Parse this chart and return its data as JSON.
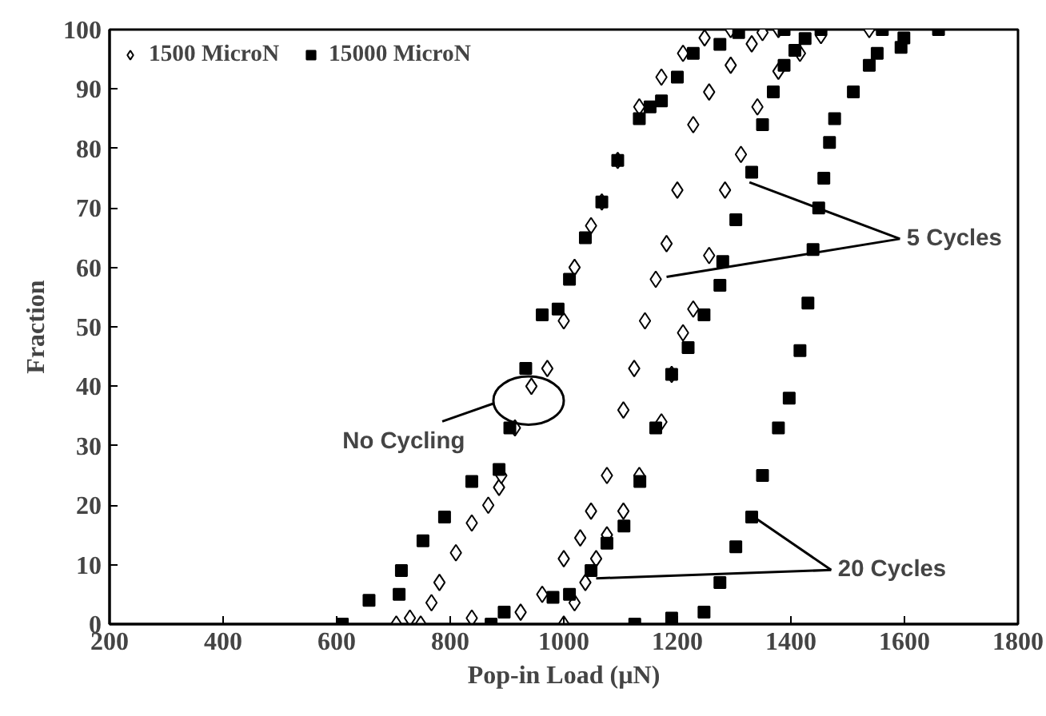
{
  "chart_data": {
    "type": "scatter",
    "xlabel": "Pop-in Load (µN)",
    "ylabel": "Fraction",
    "xlim": [
      200,
      1800
    ],
    "xticks": [
      200,
      400,
      600,
      800,
      1000,
      1200,
      1400,
      1600,
      1800
    ],
    "ylim": [
      0,
      100
    ],
    "yticks": [
      0,
      10,
      20,
      30,
      40,
      50,
      60,
      70,
      80,
      90,
      100
    ],
    "grid": false,
    "legend": "top left",
    "series": [
      {
        "name": "1500 MicroN",
        "color": "#ffffff",
        "marker": "diamond",
        "x": [
          705,
          729,
          748,
          767,
          781,
          810,
          838,
          867,
          886,
          890,
          914,
          943,
          971,
          1000,
          1019,
          1048,
          1067,
          1095,
          1133,
          1172,
          1210,
          1248,
          1294,
          838,
          924,
          962,
          1000,
          1029,
          1048,
          1076,
          1105,
          1124,
          1143,
          1162,
          1181,
          1200,
          1228,
          1256,
          1294,
          1331,
          1350,
          1378,
          1000,
          1019,
          1038,
          1057,
          1076,
          1105,
          1133,
          1172,
          1190,
          1210,
          1228,
          1256,
          1284,
          1312,
          1341,
          1378,
          1416,
          1453,
          1538
        ],
        "values": [
          0,
          1,
          0,
          3.6,
          7,
          12,
          17,
          20,
          23,
          25,
          33,
          40,
          43,
          51,
          60,
          67,
          71,
          78,
          87,
          92,
          96,
          98.6,
          100,
          1,
          2,
          5,
          11,
          14.5,
          19,
          25,
          36,
          43,
          51,
          58,
          64,
          73,
          84,
          89.5,
          94,
          97.6,
          99.5,
          100,
          0,
          3.6,
          7,
          11,
          15,
          19,
          25,
          34,
          42,
          49,
          53,
          62,
          73,
          79,
          87,
          93,
          96,
          99,
          100
        ]
      },
      {
        "name": "15000 MicroN",
        "color": "#000000",
        "marker": "square",
        "x": [
          610,
          657,
          710,
          714,
          752,
          790,
          838,
          886,
          905,
          933,
          962,
          990,
          1010,
          1038,
          1067,
          1095,
          1133,
          1152,
          1172,
          1200,
          1228,
          1275,
          1308,
          1388,
          872,
          895,
          981,
          1010,
          1048,
          1076,
          1106,
          1134,
          1162,
          1190,
          1219,
          1247,
          1275,
          1280,
          1303,
          1331,
          1350,
          1369,
          1388,
          1407,
          1425,
          1453,
          1125,
          1190,
          1247,
          1275,
          1303,
          1331,
          1350,
          1378,
          1397,
          1416,
          1430,
          1439,
          1449,
          1458,
          1468,
          1477,
          1510,
          1538,
          1552,
          1594,
          1599,
          1561,
          1660
        ],
        "values": [
          0,
          4,
          5,
          9,
          14,
          18,
          24,
          26,
          33,
          43,
          52,
          53,
          58,
          65,
          71,
          78,
          85,
          87,
          88,
          92,
          96,
          97.5,
          99.5,
          100,
          0,
          2,
          4.5,
          5,
          9,
          13.6,
          16.5,
          24,
          33,
          42,
          46.5,
          52,
          57,
          61,
          68,
          76,
          84,
          89.5,
          94,
          96.5,
          98.5,
          100,
          0,
          1,
          2,
          7,
          13,
          18,
          25,
          33,
          38,
          46,
          54,
          63,
          70,
          75,
          81,
          85,
          89.5,
          94,
          96,
          97,
          98.6,
          100,
          100
        ]
      }
    ],
    "annotations": [
      {
        "text": "No Cycling",
        "x": 938,
        "y": 37.6
      },
      {
        "text": "5 Cycles",
        "x": 1327,
        "y": 74.3
      },
      {
        "text": "20 Cycles",
        "x": 1341,
        "y": 17.6
      }
    ]
  }
}
